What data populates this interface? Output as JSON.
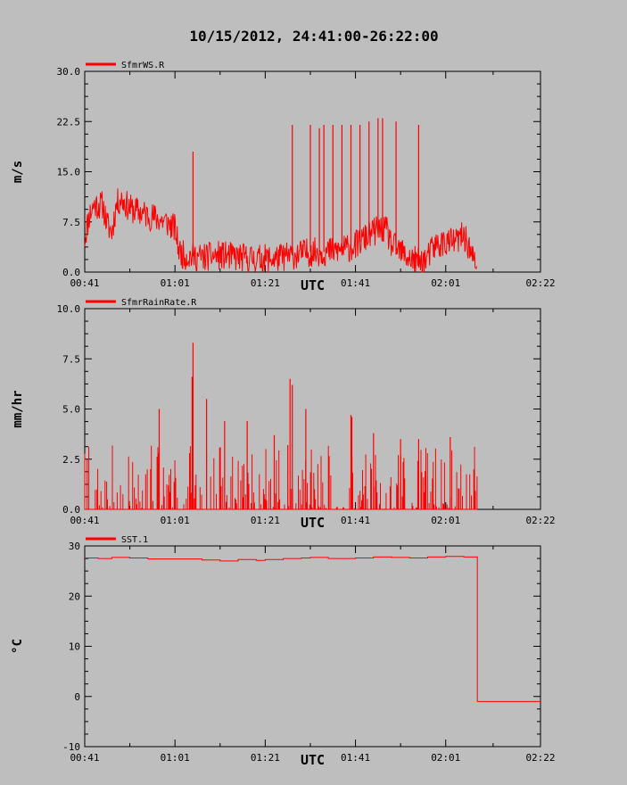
{
  "title": "10/15/2012, 24:41:00-26:22:00",
  "colors": {
    "background": "#bebebe",
    "axis": "#000000",
    "series": "#ff0000"
  },
  "x_axis": {
    "label": "UTC",
    "range_minutes": [
      0,
      101
    ],
    "ticks": [
      {
        "label": "00:41",
        "minute": 0
      },
      {
        "label": "01:01",
        "minute": 20
      },
      {
        "label": "01:21",
        "minute": 40
      },
      {
        "label": "01:41",
        "minute": 60
      },
      {
        "label": "02:01",
        "minute": 80
      },
      {
        "label": "02:22",
        "minute": 101
      }
    ]
  },
  "chart_data": [
    {
      "type": "line",
      "series": [
        {
          "name": "SfmrWS.R"
        }
      ],
      "ylabel": "m/s",
      "ylim": [
        0,
        30
      ],
      "yticks": [
        "0.0",
        "7.5",
        "15.0",
        "22.5",
        "30.0"
      ],
      "ytick_values": [
        0,
        7.5,
        15,
        22.5,
        30
      ],
      "grid": false,
      "legend": "top-left",
      "x_unit": "minutes after 00:41 UTC",
      "data_end_minute": 87,
      "trend": [
        [
          0,
          5
        ],
        [
          1,
          8.5
        ],
        [
          2,
          10
        ],
        [
          4,
          10
        ],
        [
          5,
          7
        ],
        [
          6,
          6
        ],
        [
          7,
          10
        ],
        [
          8,
          11
        ],
        [
          10,
          9.5
        ],
        [
          12,
          9
        ],
        [
          14,
          8.5
        ],
        [
          16,
          8
        ],
        [
          18,
          7.5
        ],
        [
          20,
          6.5
        ],
        [
          21,
          3
        ],
        [
          22,
          2.5
        ],
        [
          26,
          2.2
        ],
        [
          30,
          2.5
        ],
        [
          34,
          2.2
        ],
        [
          38,
          2
        ],
        [
          42,
          2
        ],
        [
          46,
          2.5
        ],
        [
          50,
          3
        ],
        [
          54,
          3
        ],
        [
          58,
          3.5
        ],
        [
          60,
          4
        ],
        [
          62,
          5
        ],
        [
          64,
          6
        ],
        [
          66,
          6.5
        ],
        [
          67,
          6
        ],
        [
          68,
          4
        ],
        [
          70,
          3
        ],
        [
          72,
          2
        ],
        [
          74,
          1.5
        ],
        [
          76,
          2
        ],
        [
          77,
          3.5
        ],
        [
          78,
          4
        ],
        [
          80,
          4.5
        ],
        [
          82,
          4.5
        ],
        [
          84,
          5.5
        ],
        [
          85,
          4
        ],
        [
          86,
          2
        ],
        [
          87,
          0.5
        ]
      ],
      "noise_amplitude": 2.2,
      "spikes": [
        [
          24,
          18
        ],
        [
          46,
          22
        ],
        [
          50,
          22
        ],
        [
          52,
          21.5
        ],
        [
          53,
          22
        ],
        [
          55,
          22
        ],
        [
          57,
          22
        ],
        [
          59,
          22
        ],
        [
          61,
          22
        ],
        [
          63,
          22.5
        ],
        [
          65,
          23
        ],
        [
          66,
          23
        ],
        [
          69,
          22.5
        ],
        [
          74,
          22
        ]
      ]
    },
    {
      "type": "line",
      "series": [
        {
          "name": "SfmrRainRate.R"
        }
      ],
      "ylabel": "mm/hr",
      "ylim": [
        0,
        10
      ],
      "yticks": [
        "0.0",
        "2.5",
        "5.0",
        "7.5",
        "10.0"
      ],
      "ytick_values": [
        0,
        2.5,
        5,
        7.5,
        10
      ],
      "grid": false,
      "legend": "top-left",
      "x_unit": "minutes after 00:41 UTC",
      "data_end_minute": 87,
      "trend": [
        [
          0,
          0
        ],
        [
          87,
          0
        ]
      ],
      "noise_amplitude": 0,
      "spike_probability": 0.45,
      "spike_max": 3.2,
      "spikes": [
        [
          16.5,
          5
        ],
        [
          24,
          8.3
        ],
        [
          23.8,
          6.6
        ],
        [
          27,
          5.5
        ],
        [
          31,
          4.4
        ],
        [
          36,
          4.4
        ],
        [
          42,
          3.7
        ],
        [
          45,
          3.2
        ],
        [
          45.5,
          6.5
        ],
        [
          46,
          6.2
        ],
        [
          49,
          5
        ],
        [
          59,
          4.7
        ],
        [
          59.2,
          4.6
        ],
        [
          64,
          3.8
        ],
        [
          70,
          3.5
        ],
        [
          74,
          3.5
        ],
        [
          81,
          3.6
        ]
      ]
    },
    {
      "type": "line",
      "series": [
        {
          "name": "SST.1"
        }
      ],
      "ylabel": "°C",
      "ylim": [
        -10,
        30
      ],
      "yticks": [
        "-10",
        "0",
        "10",
        "20",
        "30"
      ],
      "ytick_values": [
        -10,
        0,
        10,
        20,
        30
      ],
      "grid": false,
      "legend": "top-left",
      "x_unit": "minutes after 00:41 UTC",
      "step": true,
      "points": [
        [
          0,
          27.6
        ],
        [
          3,
          27.5
        ],
        [
          6,
          27.7
        ],
        [
          10,
          27.6
        ],
        [
          14,
          27.4
        ],
        [
          20,
          27.4
        ],
        [
          26,
          27.2
        ],
        [
          30,
          27
        ],
        [
          34,
          27.3
        ],
        [
          38,
          27.1
        ],
        [
          40,
          27.3
        ],
        [
          44,
          27.5
        ],
        [
          48,
          27.6
        ],
        [
          50,
          27.7
        ],
        [
          54,
          27.5
        ],
        [
          60,
          27.6
        ],
        [
          64,
          27.8
        ],
        [
          68,
          27.7
        ],
        [
          72,
          27.6
        ],
        [
          76,
          27.8
        ],
        [
          80,
          27.9
        ],
        [
          84,
          27.8
        ],
        [
          87,
          27.5
        ],
        [
          87.01,
          -1
        ],
        [
          101,
          -1
        ]
      ]
    }
  ]
}
